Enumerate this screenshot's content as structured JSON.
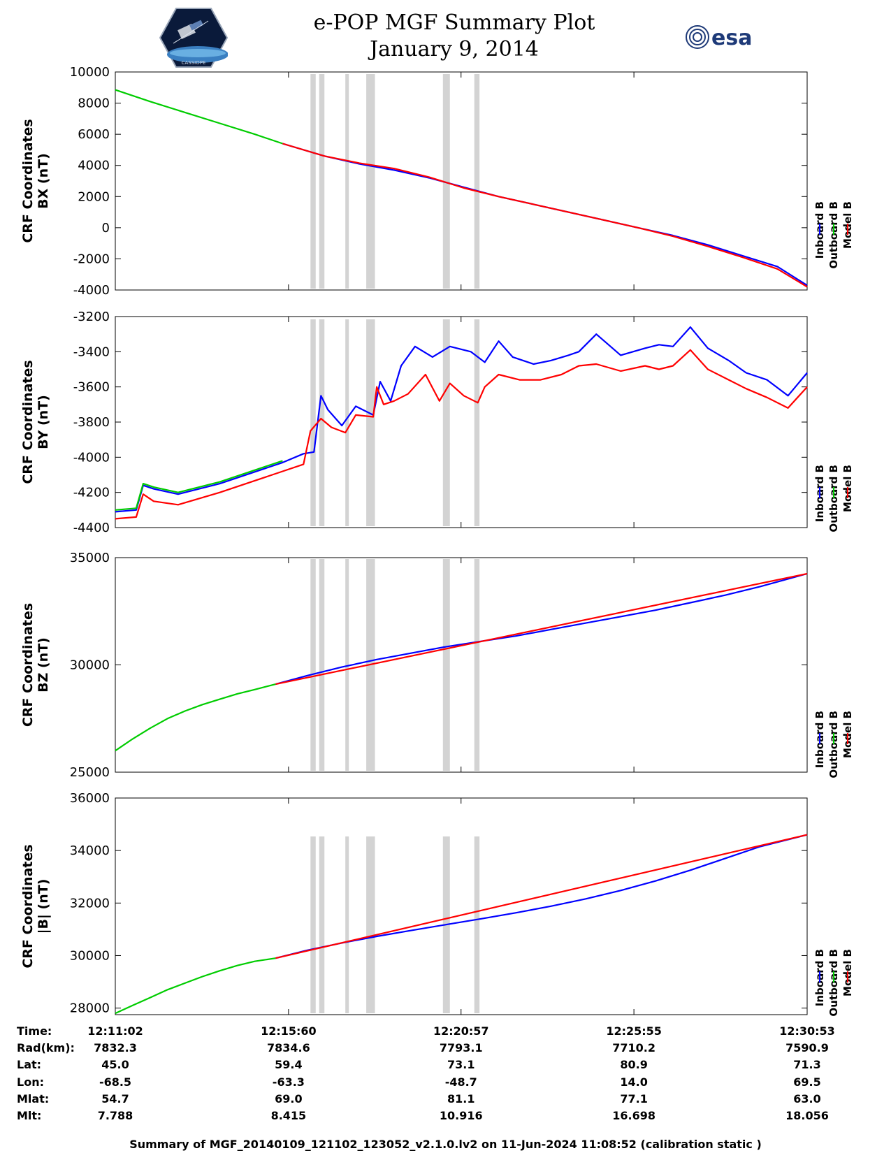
{
  "header": {
    "title": "e-POP MGF Summary Plot",
    "date": "January 9, 2014",
    "logo_left_text": "CASSIOPE",
    "logo_right_text": "esa"
  },
  "colors": {
    "inboard": "#0000ff",
    "outboard": "#00cc00",
    "model": "#ff0000",
    "gap": "#d3d3d3"
  },
  "chart_data": [
    {
      "type": "line",
      "ylabel": [
        "CRF Coordinates",
        "BX (nT)"
      ],
      "ylim": [
        -4000,
        10000
      ],
      "yticks": [
        10000,
        8000,
        6000,
        4000,
        2000,
        0,
        -2000,
        -4000
      ],
      "series": [
        {
          "name": "Inboard B",
          "color": "#0000ff",
          "x": [
            4.8,
            6.0,
            7.0,
            8.0,
            9.0,
            10.0,
            11.0,
            12.0,
            13.0,
            14.0,
            15.0,
            16.0,
            17.0,
            18.0,
            19.0,
            19.85
          ],
          "values": [
            5400,
            4600,
            4100,
            3700,
            3200,
            2600,
            2000,
            1500,
            1000,
            500,
            0,
            -500,
            -1100,
            -1800,
            -2500,
            -3700
          ]
        },
        {
          "name": "Outboard B",
          "color": "#00cc00",
          "x": [
            0,
            1.0,
            2.0,
            3.0,
            4.0,
            4.8
          ],
          "values": [
            8850,
            8100,
            7400,
            6700,
            6000,
            5400
          ]
        },
        {
          "name": "Model B",
          "color": "#ff0000",
          "x": [
            4.8,
            6.0,
            7.0,
            8.0,
            9.0,
            10.0,
            11.0,
            12.0,
            13.0,
            14.0,
            15.0,
            16.0,
            17.0,
            18.0,
            19.0,
            19.85
          ],
          "values": [
            5400,
            4600,
            4150,
            3800,
            3250,
            2550,
            2000,
            1500,
            1000,
            500,
            0,
            -550,
            -1200,
            -1900,
            -2650,
            -3800
          ]
        }
      ]
    },
    {
      "type": "line",
      "ylabel": [
        "CRF Coordinates",
        "BY (nT)"
      ],
      "ylim": [
        -4400,
        -3200
      ],
      "yticks": [
        -3200,
        -3400,
        -3600,
        -3800,
        -4000,
        -4200,
        -4400
      ],
      "series": [
        {
          "name": "Inboard B",
          "color": "#0000ff",
          "x": [
            0,
            0.6,
            0.8,
            1.1,
            1.8,
            3.0,
            4.8,
            5.4,
            5.7,
            5.9,
            6.1,
            6.5,
            6.9,
            7.4,
            7.6,
            7.9,
            8.2,
            8.6,
            9.1,
            9.6,
            10.2,
            10.6,
            11.0,
            11.4,
            12.0,
            12.5,
            13.0,
            13.3,
            13.8,
            14.5,
            15.2,
            15.6,
            16.0,
            16.5,
            17.0,
            17.6,
            18.1,
            18.7,
            19.3,
            19.85
          ],
          "values": [
            -4310,
            -4300,
            -4160,
            -4180,
            -4210,
            -4150,
            -4030,
            -3980,
            -3970,
            -3650,
            -3730,
            -3820,
            -3710,
            -3760,
            -3570,
            -3680,
            -3480,
            -3370,
            -3430,
            -3370,
            -3400,
            -3460,
            -3340,
            -3430,
            -3470,
            -3450,
            -3420,
            -3400,
            -3300,
            -3420,
            -3380,
            -3360,
            -3370,
            -3260,
            -3380,
            -3450,
            -3520,
            -3560,
            -3650,
            -3520
          ]
        },
        {
          "name": "Outboard B",
          "color": "#00cc00",
          "x": [
            0,
            0.6,
            0.8,
            1.1,
            1.8,
            3.0,
            4.8
          ],
          "values": [
            -4300,
            -4290,
            -4150,
            -4170,
            -4200,
            -4140,
            -4020
          ]
        },
        {
          "name": "Model B",
          "color": "#ff0000",
          "x": [
            0,
            0.6,
            0.8,
            1.1,
            1.8,
            3.0,
            4.8,
            5.4,
            5.6,
            5.9,
            6.2,
            6.6,
            6.9,
            7.4,
            7.5,
            7.7,
            8.0,
            8.4,
            8.9,
            9.3,
            9.6,
            10.0,
            10.4,
            10.6,
            11.0,
            11.6,
            12.2,
            12.8,
            13.3,
            13.8,
            14.5,
            15.2,
            15.6,
            16.0,
            16.5,
            17.0,
            17.6,
            18.1,
            18.7,
            19.3,
            19.85
          ],
          "values": [
            -4350,
            -4340,
            -4210,
            -4250,
            -4270,
            -4200,
            -4080,
            -4040,
            -3850,
            -3780,
            -3830,
            -3860,
            -3760,
            -3770,
            -3600,
            -3700,
            -3680,
            -3640,
            -3530,
            -3680,
            -3580,
            -3650,
            -3690,
            -3600,
            -3530,
            -3560,
            -3560,
            -3530,
            -3480,
            -3470,
            -3510,
            -3480,
            -3500,
            -3480,
            -3390,
            -3500,
            -3560,
            -3610,
            -3660,
            -3720,
            -3600
          ]
        }
      ]
    },
    {
      "type": "line",
      "ylabel": [
        "CRF Coordinates",
        "BZ (nT)"
      ],
      "ylim": [
        25000,
        35000
      ],
      "yticks": [
        35000,
        30000,
        25000
      ],
      "series": [
        {
          "name": "Inboard B",
          "color": "#0000ff",
          "x": [
            4.6,
            5.5,
            6.5,
            7.5,
            8.5,
            9.5,
            10.5,
            11.5,
            12.5,
            13.5,
            14.5,
            15.5,
            16.5,
            17.5,
            18.5,
            19.85
          ],
          "values": [
            29100,
            29500,
            29900,
            30250,
            30550,
            30850,
            31100,
            31350,
            31650,
            31950,
            32250,
            32550,
            32900,
            33250,
            33650,
            34250
          ]
        },
        {
          "name": "Outboard B",
          "color": "#00cc00",
          "x": [
            0,
            0.5,
            1.0,
            1.5,
            2.0,
            2.5,
            3.0,
            3.5,
            4.0,
            4.6
          ],
          "values": [
            26000,
            26550,
            27050,
            27500,
            27850,
            28150,
            28400,
            28650,
            28850,
            29100
          ]
        },
        {
          "name": "Model B",
          "color": "#ff0000",
          "x": [
            4.6,
            19.85
          ],
          "values": [
            29100,
            34250
          ]
        }
      ]
    },
    {
      "type": "line",
      "ylabel": [
        "CRF Coordinates",
        "|B| (nT)"
      ],
      "ylim": [
        27750,
        36000
      ],
      "yticks": [
        36000,
        34000,
        32000,
        30000,
        28000
      ],
      "series": [
        {
          "name": "Inboard B",
          "color": "#0000ff",
          "x": [
            4.6,
            5.5,
            6.5,
            7.5,
            8.5,
            9.5,
            10.5,
            11.5,
            12.5,
            13.5,
            14.5,
            15.5,
            16.5,
            17.5,
            18.5,
            19.85
          ],
          "values": [
            29900,
            30200,
            30480,
            30730,
            30960,
            31180,
            31400,
            31630,
            31880,
            32160,
            32480,
            32840,
            33250,
            33700,
            34150,
            34600
          ]
        },
        {
          "name": "Outboard B",
          "color": "#00cc00",
          "x": [
            0,
            0.5,
            1.0,
            1.5,
            2.0,
            2.5,
            3.0,
            3.5,
            4.0,
            4.6
          ],
          "values": [
            27800,
            28100,
            28400,
            28700,
            28950,
            29200,
            29420,
            29620,
            29780,
            29900
          ]
        },
        {
          "name": "Model B",
          "color": "#ff0000",
          "x": [
            4.6,
            19.85
          ],
          "values": [
            29900,
            34600
          ]
        }
      ]
    }
  ],
  "gaps_minutes": [
    [
      5.6,
      5.75
    ],
    [
      5.85,
      6.0
    ],
    [
      6.6,
      6.7
    ],
    [
      7.2,
      7.45
    ],
    [
      9.4,
      9.6
    ],
    [
      10.3,
      10.45
    ]
  ],
  "legend": [
    "Inboard B",
    "Outboard B",
    "Model B"
  ],
  "ephemeris": {
    "labels": [
      "Time:",
      "Rad(km):",
      "Lat:",
      "Lon:",
      "Mlat:",
      "Mlt:"
    ],
    "columns": [
      {
        "minute": 0,
        "values": [
          "12:11:02",
          "7832.3",
          "45.0",
          "-68.5",
          "54.7",
          "7.788"
        ]
      },
      {
        "minute": 4.97,
        "values": [
          "12:15:60",
          "7834.6",
          "59.4",
          "-63.3",
          "69.0",
          "8.415"
        ]
      },
      {
        "minute": 9.92,
        "values": [
          "12:20:57",
          "7793.1",
          "73.1",
          "-48.7",
          "81.1",
          "10.916"
        ]
      },
      {
        "minute": 14.88,
        "values": [
          "12:25:55",
          "7710.2",
          "80.9",
          "14.0",
          "77.1",
          "16.698"
        ]
      },
      {
        "minute": 19.85,
        "values": [
          "12:30:53",
          "7590.9",
          "71.3",
          "69.5",
          "63.0",
          "18.056"
        ]
      }
    ]
  },
  "footer": "Summary of MGF_20140109_121102_123052_v2.1.0.lv2 on 11-Jun-2024 11:08:52 (calibration static )"
}
